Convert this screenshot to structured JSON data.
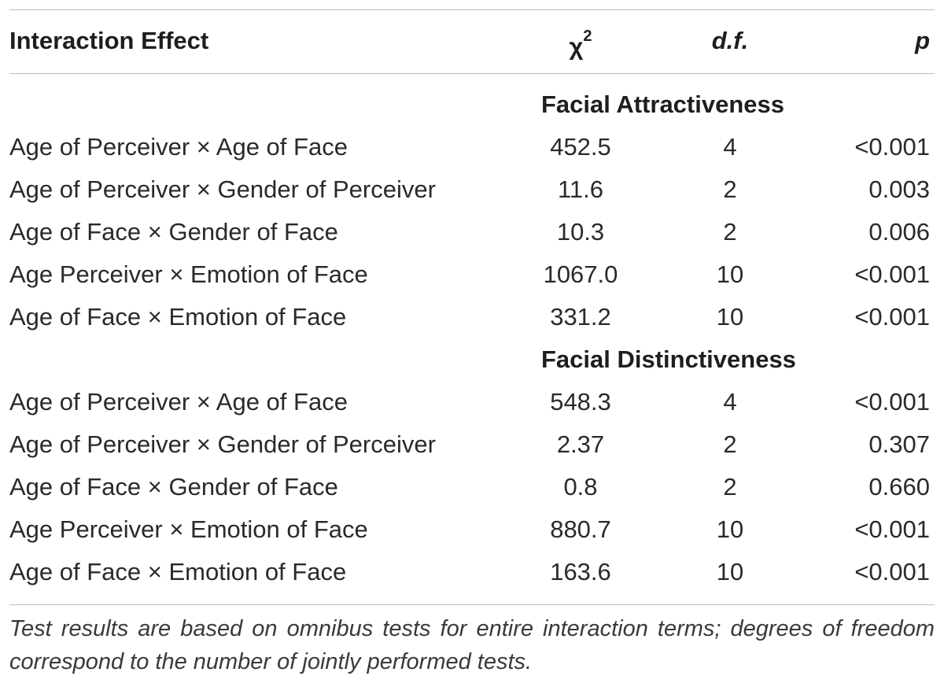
{
  "table": {
    "header": {
      "effect": "Interaction Effect",
      "chi": "χ",
      "chi_sup": "2",
      "df": "d.f.",
      "p": "p"
    },
    "sections": [
      {
        "title": "Facial Attractiveness",
        "rows": [
          {
            "effect": "Age of Perceiver × Age of Face",
            "chi": "452.5",
            "df": "4",
            "p": "<0.001"
          },
          {
            "effect": "Age of Perceiver × Gender of Perceiver",
            "chi": "11.6",
            "df": "2",
            "p": "0.003"
          },
          {
            "effect": "Age of Face × Gender of Face",
            "chi": "10.3",
            "df": "2",
            "p": "0.006"
          },
          {
            "effect": "Age Perceiver × Emotion of Face",
            "chi": "1067.0",
            "df": "10",
            "p": "<0.001"
          },
          {
            "effect": "Age of Face × Emotion of Face",
            "chi": "331.2",
            "df": "10",
            "p": "<0.001"
          }
        ]
      },
      {
        "title": "Facial Distinctiveness",
        "rows": [
          {
            "effect": "Age of Perceiver × Age of Face",
            "chi": "548.3",
            "df": "4",
            "p": "<0.001"
          },
          {
            "effect": "Age of Perceiver × Gender of Perceiver",
            "chi": "2.37",
            "df": "2",
            "p": "0.307"
          },
          {
            "effect": "Age of Face × Gender of Face",
            "chi": "0.8",
            "df": "2",
            "p": "0.660"
          },
          {
            "effect": "Age Perceiver × Emotion of Face",
            "chi": "880.7",
            "df": "10",
            "p": "<0.001"
          },
          {
            "effect": "Age of Face × Emotion of Face",
            "chi": "163.6",
            "df": "10",
            "p": "<0.001"
          }
        ]
      }
    ],
    "footnote": "Test results are based on omnibus tests for entire interaction terms; degrees of freedom correspond to the number of jointly performed tests."
  }
}
